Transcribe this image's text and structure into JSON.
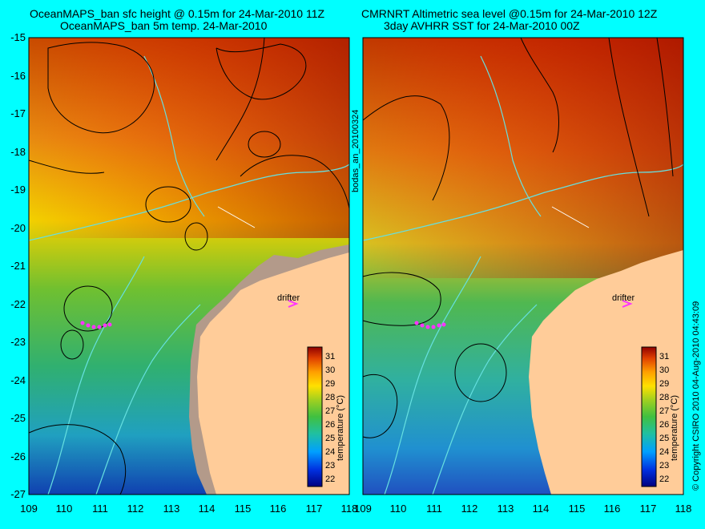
{
  "left_panel": {
    "title_line1": "OceanMAPS_ban sfc height @ 0.15m for 24-Mar-2010 11Z",
    "title_line2": "OceanMAPS_ban 5m temp. 24-Mar-2010",
    "drifter_label": "drifter",
    "colorbar_label": "temperature (°C)"
  },
  "right_panel": {
    "title_line1": "CMRNRT Altimetric sea level  @0.15m  for 24-Mar-2010 12Z",
    "title_line2": "3day AVHRR SST for 24-Mar-2010 00Z",
    "drifter_label": "drifter",
    "colorbar_label": "temperature (°C)"
  },
  "side_label_middle": "bodas_an_20100324",
  "side_label_right": "© Copyright CSIRO 2010   04-Aug-2010 04:43:09",
  "lat_ticks": [
    "-15",
    "-16",
    "-17",
    "-18",
    "-19",
    "-20",
    "-21",
    "-22",
    "-23",
    "-24",
    "-25",
    "-26",
    "-27"
  ],
  "lon_ticks": [
    "109",
    "110",
    "111",
    "112",
    "113",
    "114",
    "115",
    "116",
    "117",
    "118"
  ],
  "colorbar_ticks": [
    "31",
    "30",
    "29",
    "28",
    "27",
    "26",
    "25",
    "24",
    "23",
    "22"
  ],
  "colors": {
    "background": "#00ffff",
    "land": "#ffcc99",
    "model_land": "#b39a8a",
    "contour": "#000000",
    "bathymetry": "#66e0e0",
    "drifter": "#ff33ff"
  }
}
